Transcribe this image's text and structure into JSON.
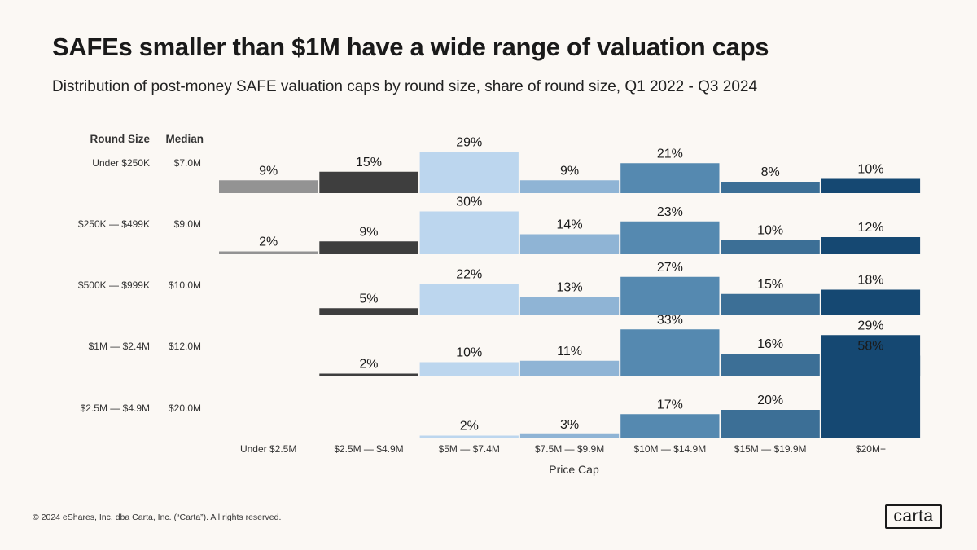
{
  "header": {
    "title": "SAFEs smaller than $1M have a wide range of valuation caps",
    "subtitle": "Distribution of post-money SAFE valuation caps by round size, share of round size, Q1 2022 - Q3 2024"
  },
  "chart_data": {
    "type": "bar",
    "title": "SAFEs smaller than $1M have a wide range of valuation caps",
    "xlabel": "Price Cap",
    "ylabel": "Round Size",
    "row_header_label": "Round Size",
    "median_header_label": "Median",
    "categories": [
      "Under $2.5M",
      "$2.5M — $4.9M",
      "$5M — $7.4M",
      "$7.5M — $9.9M",
      "$10M — $14.9M",
      "$15M — $19.9M",
      "$20M+"
    ],
    "category_colors": [
      "#939393",
      "#3e3e3e",
      "#bcd6ee",
      "#8fb4d5",
      "#5589b0",
      "#3c6f96",
      "#154872"
    ],
    "series": [
      {
        "name": "Under $250K",
        "median": "$7.0M",
        "values": [
          9,
          15,
          29,
          9,
          21,
          8,
          10
        ]
      },
      {
        "name": "$250K — $499K",
        "median": "$9.0M",
        "values": [
          2,
          9,
          30,
          14,
          23,
          10,
          12
        ]
      },
      {
        "name": "$500K — $999K",
        "median": "$10.0M",
        "values": [
          null,
          5,
          22,
          13,
          27,
          15,
          18
        ]
      },
      {
        "name": "$1M — $2.4M",
        "median": "$12.0M",
        "values": [
          null,
          2,
          10,
          11,
          33,
          16,
          29
        ]
      },
      {
        "name": "$2.5M — $4.9M",
        "median": "$20.0M",
        "values": [
          null,
          null,
          2,
          3,
          17,
          20,
          58
        ]
      }
    ],
    "value_suffix": "%"
  },
  "footer": {
    "copyright": "© 2024 eShares, Inc. dba Carta, Inc. (“Carta”). All rights reserved.",
    "logo_text": "carta"
  }
}
